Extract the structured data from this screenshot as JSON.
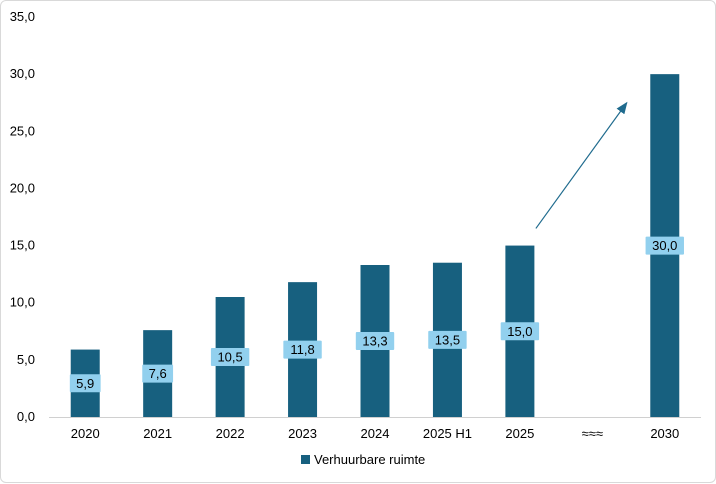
{
  "chart_data": {
    "type": "bar",
    "title": "",
    "xlabel": "",
    "ylabel": "",
    "categories": [
      "2020",
      "2021",
      "2022",
      "2023",
      "2024",
      "2025 H1",
      "2025",
      "≈≈≈",
      "2030"
    ],
    "series": [
      {
        "name": "Verhuurbare ruimte",
        "values": [
          5.9,
          7.6,
          10.5,
          11.8,
          13.3,
          13.5,
          15.0,
          null,
          30.0
        ],
        "data_labels": [
          "5,9",
          "7,6",
          "10,5",
          "11,8",
          "13,3",
          "13,5",
          "15,0",
          null,
          "30,0"
        ]
      }
    ],
    "ylim": [
      0,
      35
    ],
    "y_ticks": [
      "0,0",
      "5,0",
      "10,0",
      "15,0",
      "20,0",
      "25,0",
      "30,0",
      "35,0"
    ],
    "grid": false,
    "legend_position": "bottom",
    "colors": {
      "bar": "#17607f",
      "label_box": "#92d0ee",
      "arrow": "#1f6b8e",
      "axis": "#d0d0d0"
    },
    "annotations": [
      {
        "type": "arrow",
        "from_category": "2025",
        "to_category": "2030",
        "from_value": 16.5,
        "to_value": 27.5
      }
    ]
  }
}
